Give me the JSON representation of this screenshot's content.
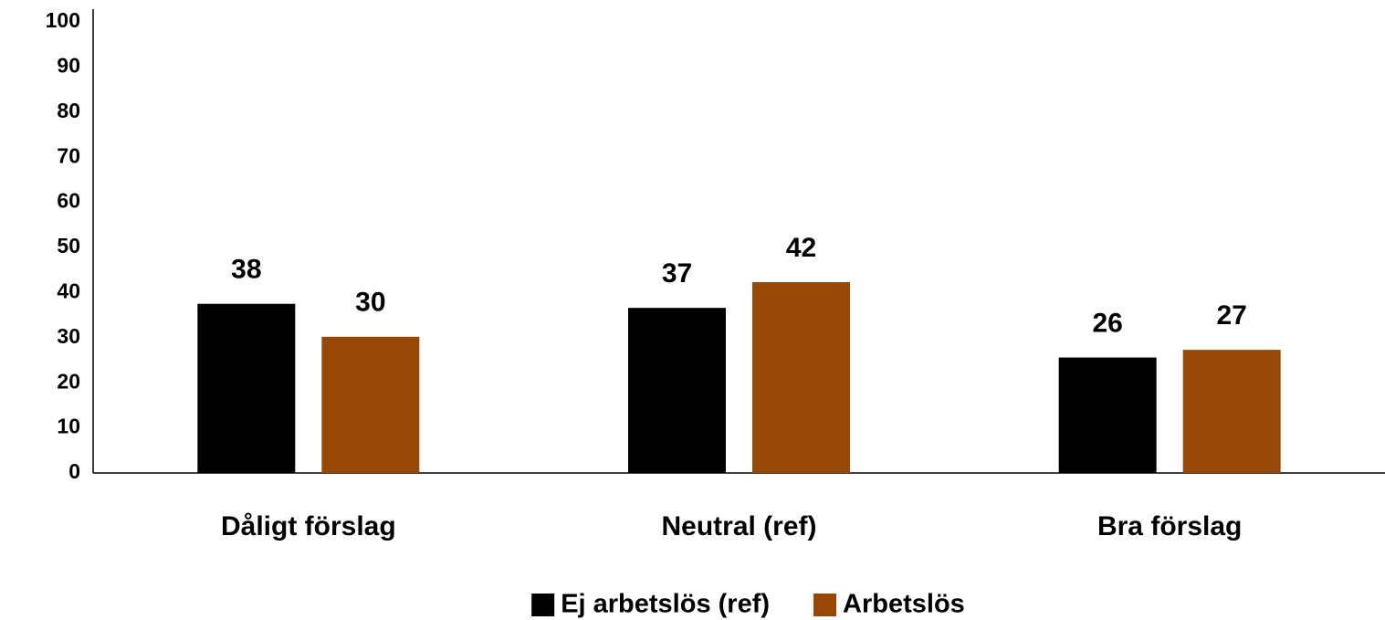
{
  "chart_data": {
    "type": "bar",
    "categories": [
      "Dåligt förslag",
      "Neutral (ref)",
      "Bra förslag"
    ],
    "series": [
      {
        "name": "Ej arbetslös (ref)",
        "color": "#000000",
        "values": [
          37.5,
          36.6,
          25.6
        ],
        "value_labels": [
          "38",
          "37",
          "26"
        ]
      },
      {
        "name": "Arbetslös",
        "color": "#974706",
        "values": [
          30.2,
          42.3,
          27.3
        ],
        "value_labels": [
          "30",
          "42",
          "27"
        ]
      }
    ],
    "ylim": [
      0,
      100
    ],
    "yticks": [
      0,
      10,
      20,
      30,
      40,
      50,
      60,
      70,
      80,
      90,
      100
    ],
    "grid": false,
    "legend": "bottom"
  }
}
